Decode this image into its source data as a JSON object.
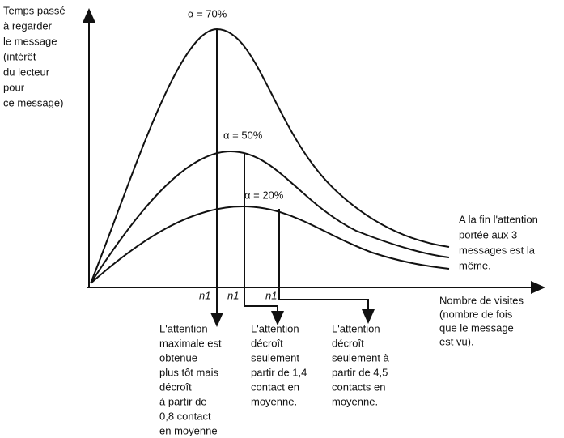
{
  "y_axis_label": [
    "Temps passé",
    "à regarder",
    "le message",
    "(intérêt",
    "du lecteur",
    "pour",
    "ce message)"
  ],
  "curves": [
    {
      "label": "α = 70%"
    },
    {
      "label": "α = 50%"
    },
    {
      "label": "α = 20%"
    }
  ],
  "end_note": [
    "A la fin l'attention",
    "portée aux 3",
    "messages est la",
    "même."
  ],
  "x_axis_label": [
    "Nombre de visites",
    "(nombre de fois",
    "que le message",
    "est vu)."
  ],
  "n_labels": [
    "n1",
    "n1",
    "n1"
  ],
  "notes": [
    {
      "lines": [
        "L'attention",
        "maximale est",
        "obtenue",
        "plus tôt mais",
        "décroît",
        "à partir de",
        "0,8 contact",
        "en moyenne"
      ]
    },
    {
      "lines": [
        "L'attention",
        "décroît",
        "seulement",
        "partir de 1,4",
        "contact en",
        "moyenne."
      ]
    },
    {
      "lines": [
        "L'attention",
        "décroît",
        "seulement à",
        "partir de 4,5",
        "contacts en",
        "moyenne."
      ]
    }
  ]
}
